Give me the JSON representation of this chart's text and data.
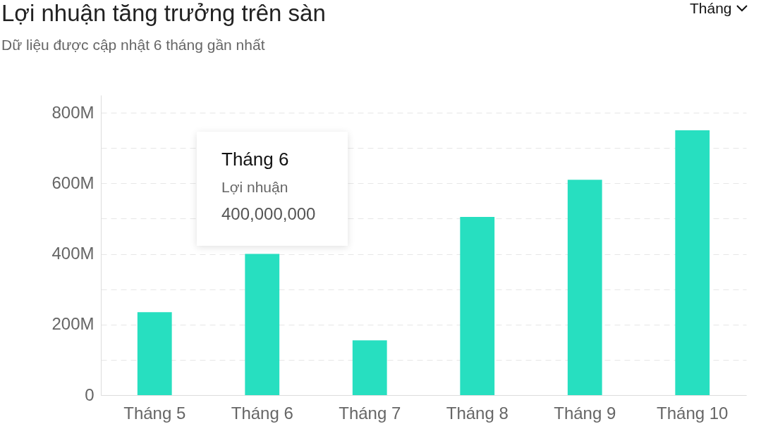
{
  "chart_data": {
    "type": "bar",
    "title": "Lợi nhuận tăng trưởng trên sàn",
    "subtitle": "Dữ liệu được cập nhật 6 tháng gần nhất",
    "categories": [
      "Tháng 5",
      "Tháng 6",
      "Tháng 7",
      "Tháng 8",
      "Tháng 9",
      "Tháng 10"
    ],
    "values": [
      235000000,
      400000000,
      155000000,
      505000000,
      610000000,
      750000000
    ],
    "color": "#27dfc0",
    "ylim": [
      0,
      850000000
    ],
    "yticks": [
      {
        "value": 0,
        "label": "0"
      },
      {
        "value": 100000000,
        "label": null
      },
      {
        "value": 200000000,
        "label": "200M"
      },
      {
        "value": 300000000,
        "label": null
      },
      {
        "value": 400000000,
        "label": "400M"
      },
      {
        "value": 500000000,
        "label": null
      },
      {
        "value": 600000000,
        "label": "600M"
      },
      {
        "value": 700000000,
        "label": null
      },
      {
        "value": 800000000,
        "label": "800M"
      }
    ],
    "grid": "y",
    "annotations": [
      "Tháng 6",
      "Lợi nhuận",
      "400,000,000",
      "Tháng"
    ]
  }
}
